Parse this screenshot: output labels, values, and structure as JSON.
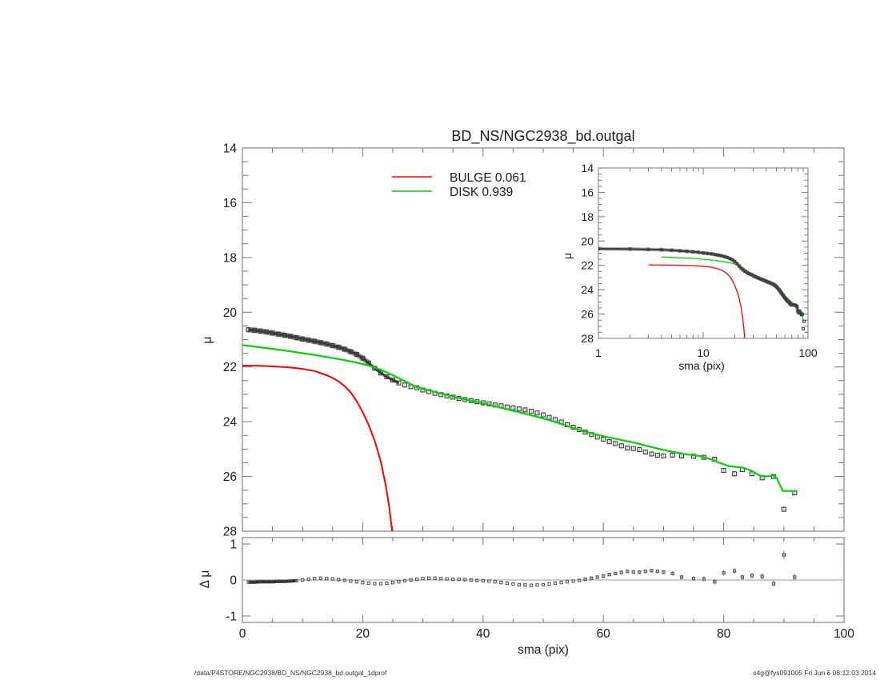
{
  "title": "BD_NS/NGC2938_bd.outgal",
  "legend": {
    "bulge_label": "BULGE  0.061",
    "disk_label": "DISK  0.939"
  },
  "labels": {
    "main_ylabel": "μ",
    "residual_ylabel": "Δ μ",
    "xlabel": "sma (pix)",
    "inset_xlabel": "sma (pix)",
    "inset_ylabel": "μ"
  },
  "footer": {
    "left": "/data/P4STORE/NGC2938/BD_NS/NGC2938_bd.outgal_1dprof",
    "right": "s4g@fys091005  Fri Jun  6 08:12:03 2014"
  },
  "colors": {
    "bulge": "#ff0000",
    "disk": "#00d300",
    "data": "#3a3a3a",
    "data_halo": "#a6a6a6",
    "err_dense": "#8f8f8f",
    "err_light": "#b3b3b3",
    "axis": "#777777",
    "zero_line": "#999999"
  },
  "main_plot": {
    "y_ticks": [
      14,
      16,
      18,
      20,
      22,
      24,
      26,
      28
    ],
    "x_ticks": [
      0,
      20,
      40,
      60,
      80,
      100
    ]
  },
  "inset_plot": {
    "y_ticks": [
      14,
      16,
      18,
      20,
      22,
      24,
      26,
      28
    ],
    "x_ticks": [
      1,
      10,
      100
    ]
  },
  "residual_plot": {
    "y_ticks": [
      1,
      0,
      -1
    ],
    "x_ticks": [
      0,
      20,
      40,
      60,
      80,
      100
    ]
  },
  "chart_data": {
    "type": "line+scatter",
    "xlabel": "sma (pix)",
    "ylabel_main": "μ",
    "ylabel_residual": "Δ μ",
    "main_axes": {
      "xscale": "linear",
      "xlim": [
        0,
        100
      ],
      "ylim_top": 14,
      "ylim_bottom": 28,
      "x_major": 20,
      "x_minor": 5,
      "y_major": 2,
      "y_minor": 0.5
    },
    "inset_axes": {
      "xscale": "log",
      "xlim": [
        1,
        100
      ],
      "ylim_top": 14,
      "ylim_bottom": 28,
      "y_major": 2,
      "y_minor": 0.5
    },
    "residual_axes": {
      "xscale": "linear",
      "xlim": [
        0,
        100
      ],
      "ylim": [
        -1.15,
        1.15
      ],
      "y_ticks": [
        -1,
        0,
        1
      ]
    },
    "profile_points": [
      [
        1,
        20.64
      ],
      [
        2,
        20.66
      ],
      [
        3,
        20.69
      ],
      [
        4,
        20.72
      ],
      [
        5,
        20.76
      ],
      [
        6,
        20.8
      ],
      [
        7,
        20.84
      ],
      [
        8,
        20.88
      ],
      [
        9,
        20.93
      ],
      [
        10,
        20.98
      ],
      [
        11,
        21.02
      ],
      [
        12,
        21.06
      ],
      [
        13,
        21.11
      ],
      [
        14,
        21.16
      ],
      [
        15,
        21.22
      ],
      [
        16,
        21.28
      ],
      [
        17,
        21.35
      ],
      [
        18,
        21.44
      ],
      [
        19,
        21.54
      ],
      [
        20,
        21.68
      ],
      [
        21,
        21.86
      ],
      [
        22,
        22.05
      ],
      [
        23,
        22.22
      ],
      [
        24,
        22.36
      ],
      [
        25,
        22.48
      ],
      [
        26,
        22.58
      ],
      [
        27,
        22.66
      ],
      [
        28,
        22.72
      ],
      [
        29,
        22.76
      ],
      [
        30,
        22.84
      ],
      [
        31,
        22.9
      ],
      [
        32,
        22.96
      ],
      [
        33,
        23.01
      ],
      [
        34,
        23.06
      ],
      [
        35,
        23.1
      ],
      [
        36,
        23.15
      ],
      [
        37,
        23.19
      ],
      [
        38,
        23.23
      ],
      [
        39,
        23.27
      ],
      [
        40,
        23.31
      ],
      [
        41,
        23.35
      ],
      [
        42,
        23.39
      ],
      [
        43,
        23.42
      ],
      [
        44,
        23.46
      ],
      [
        45,
        23.49
      ],
      [
        46,
        23.53
      ],
      [
        47,
        23.57
      ],
      [
        48,
        23.62
      ],
      [
        49,
        23.68
      ],
      [
        50,
        23.75
      ],
      [
        51,
        23.84
      ],
      [
        52,
        23.92
      ],
      [
        53,
        24.01
      ],
      [
        54,
        24.11
      ],
      [
        55,
        24.2
      ],
      [
        56,
        24.29
      ],
      [
        57,
        24.38
      ],
      [
        58,
        24.47
      ],
      [
        59,
        24.56
      ],
      [
        60,
        24.64
      ],
      [
        61,
        24.73
      ],
      [
        62,
        24.8
      ],
      [
        63,
        24.88
      ],
      [
        64,
        24.96
      ],
      [
        65,
        24.98
      ],
      [
        66,
        25.02
      ],
      [
        67,
        25.11
      ],
      [
        68,
        25.18
      ],
      [
        69,
        25.22
      ],
      [
        70,
        25.25
      ],
      [
        71.5,
        25.22
      ],
      [
        73,
        25.25
      ],
      [
        75,
        25.26
      ],
      [
        76.7,
        25.3
      ],
      [
        78.5,
        25.37
      ],
      [
        80,
        25.78
      ],
      [
        81.8,
        25.9
      ],
      [
        83.1,
        25.75
      ],
      [
        84.7,
        25.9
      ],
      [
        86.4,
        26.05
      ],
      [
        88.3,
        26.0
      ],
      [
        90,
        27.2
      ],
      [
        91.8,
        26.6
      ]
    ],
    "disk_model": [
      [
        0,
        21.2
      ],
      [
        4,
        21.31
      ],
      [
        8,
        21.43
      ],
      [
        12,
        21.56
      ],
      [
        16,
        21.71
      ],
      [
        19,
        21.84
      ],
      [
        21,
        21.95
      ],
      [
        23,
        22.1
      ],
      [
        25,
        22.3
      ],
      [
        27,
        22.52
      ],
      [
        29,
        22.74
      ],
      [
        31,
        22.85
      ],
      [
        33,
        22.97
      ],
      [
        35,
        23.08
      ],
      [
        37,
        23.18
      ],
      [
        40,
        23.33
      ],
      [
        43,
        23.49
      ],
      [
        45,
        23.6
      ],
      [
        47,
        23.71
      ],
      [
        50,
        23.88
      ],
      [
        53,
        24.08
      ],
      [
        55,
        24.23
      ],
      [
        57,
        24.36
      ],
      [
        60,
        24.53
      ],
      [
        62,
        24.62
      ],
      [
        65,
        24.76
      ],
      [
        67,
        24.87
      ],
      [
        70,
        25.03
      ],
      [
        72,
        25.12
      ],
      [
        74,
        25.2
      ],
      [
        76,
        25.25
      ],
      [
        78,
        25.38
      ],
      [
        79.5,
        25.52
      ],
      [
        81,
        25.63
      ],
      [
        83,
        25.67
      ],
      [
        84.5,
        25.78
      ],
      [
        86,
        25.97
      ],
      [
        87,
        26.0
      ],
      [
        88.3,
        25.97
      ],
      [
        88.8,
        26.05
      ],
      [
        89.8,
        26.53
      ],
      [
        92,
        26.53
      ]
    ],
    "bulge_model": [
      [
        0,
        21.95
      ],
      [
        3,
        21.96
      ],
      [
        6,
        21.99
      ],
      [
        8,
        22.02
      ],
      [
        10,
        22.07
      ],
      [
        12,
        22.15
      ],
      [
        14,
        22.3
      ],
      [
        15,
        22.4
      ],
      [
        16,
        22.53
      ],
      [
        17,
        22.7
      ],
      [
        18,
        22.93
      ],
      [
        19,
        23.25
      ],
      [
        20,
        23.65
      ],
      [
        21,
        24.12
      ],
      [
        22,
        24.7
      ],
      [
        23,
        25.45
      ],
      [
        23.8,
        26.3
      ],
      [
        24.4,
        27.1
      ],
      [
        24.9,
        28.0
      ]
    ],
    "residuals": [
      [
        1,
        -0.06,
        0
      ],
      [
        2,
        -0.06,
        0
      ],
      [
        3,
        -0.05,
        0
      ],
      [
        4,
        -0.05,
        0
      ],
      [
        5,
        -0.05,
        0
      ],
      [
        6,
        -0.04,
        0
      ],
      [
        7,
        -0.04,
        0
      ],
      [
        8,
        -0.03,
        0
      ],
      [
        9,
        -0.02,
        0
      ],
      [
        10,
        0,
        0
      ],
      [
        11,
        0.02,
        0
      ],
      [
        12,
        0.04,
        0
      ],
      [
        13,
        0.05,
        0
      ],
      [
        14,
        0.04,
        0
      ],
      [
        15,
        0.03,
        0
      ],
      [
        16,
        0.01,
        0
      ],
      [
        17,
        -0.01,
        0
      ],
      [
        18,
        -0.03,
        0
      ],
      [
        19,
        -0.05,
        0
      ],
      [
        20,
        -0.07,
        0
      ],
      [
        21,
        -0.09,
        0
      ],
      [
        22,
        -0.1,
        0
      ],
      [
        23,
        -0.1,
        0
      ],
      [
        24,
        -0.09,
        0
      ],
      [
        25,
        -0.07,
        0
      ],
      [
        26,
        -0.05,
        0
      ],
      [
        27,
        -0.02,
        0
      ],
      [
        28,
        0,
        0
      ],
      [
        29,
        0.02,
        0
      ],
      [
        30,
        0.04,
        0
      ],
      [
        31,
        0.05,
        0
      ],
      [
        32,
        0.05,
        0
      ],
      [
        33,
        0.04,
        0
      ],
      [
        34,
        0.03,
        0
      ],
      [
        35,
        0.02,
        0
      ],
      [
        36,
        0.02,
        0
      ],
      [
        37,
        0.01,
        0
      ],
      [
        38,
        0,
        0
      ],
      [
        39,
        -0.01,
        0
      ],
      [
        40,
        -0.02,
        0
      ],
      [
        41,
        -0.03,
        0
      ],
      [
        42,
        -0.05,
        0
      ],
      [
        43,
        -0.07,
        0
      ],
      [
        44,
        -0.09,
        0
      ],
      [
        45,
        -0.11,
        0
      ],
      [
        46,
        -0.13,
        0
      ],
      [
        47,
        -0.14,
        0
      ],
      [
        48,
        -0.15,
        0
      ],
      [
        49,
        -0.14,
        0
      ],
      [
        50,
        -0.13,
        0
      ],
      [
        51,
        -0.11,
        0
      ],
      [
        52,
        -0.09,
        0
      ],
      [
        53,
        -0.07,
        0
      ],
      [
        54,
        -0.05,
        0
      ],
      [
        55,
        -0.03,
        0
      ],
      [
        56,
        -0.01,
        0
      ],
      [
        57,
        0.02,
        0.03
      ],
      [
        58,
        0.05,
        0.03
      ],
      [
        59,
        0.08,
        0.03
      ],
      [
        60,
        0.11,
        0.03
      ],
      [
        61,
        0.15,
        0.04
      ],
      [
        62,
        0.18,
        0.04
      ],
      [
        63,
        0.21,
        0.04
      ],
      [
        64,
        0.24,
        0.04
      ],
      [
        65,
        0.22,
        0.04
      ],
      [
        66,
        0.22,
        0.05
      ],
      [
        67,
        0.24,
        0.05
      ],
      [
        68,
        0.26,
        0.05
      ],
      [
        69,
        0.24,
        0.05
      ],
      [
        70,
        0.22,
        0.05
      ],
      [
        71.5,
        0.18,
        0.06
      ],
      [
        73,
        0.08,
        0.06
      ],
      [
        75,
        0.04,
        0.06
      ],
      [
        76.7,
        0.03,
        0.07
      ],
      [
        78.5,
        -0.05,
        0.07
      ],
      [
        80,
        0.2,
        0.08
      ],
      [
        81.8,
        0.25,
        0.08
      ],
      [
        83.1,
        0.08,
        0.08
      ],
      [
        84.7,
        0.12,
        0.08
      ],
      [
        86.4,
        0.1,
        0.09
      ],
      [
        88.3,
        -0.1,
        0.09
      ],
      [
        90,
        0.7,
        0.12
      ],
      [
        91.8,
        0.08,
        0.1
      ]
    ]
  }
}
